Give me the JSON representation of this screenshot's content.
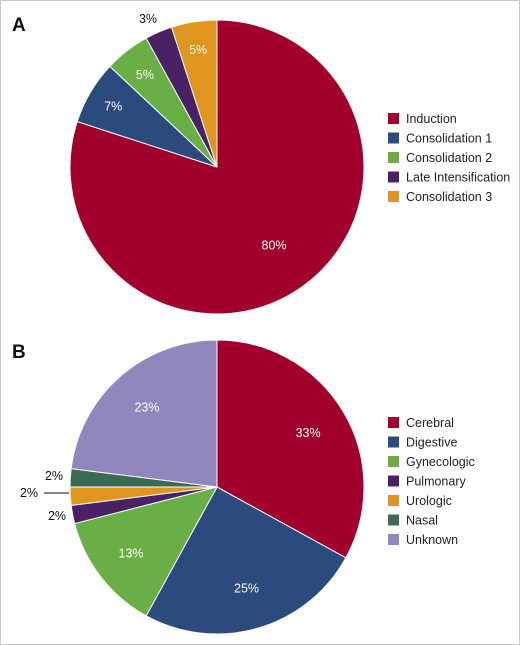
{
  "chart_data": [
    {
      "type": "pie",
      "panel_label": "A",
      "legend_position": "right",
      "slices": [
        {
          "name": "Induction",
          "value": 80,
          "label": "80%",
          "color": "#a0002b"
        },
        {
          "name": "Consolidation 1",
          "value": 7,
          "label": "7%",
          "color": "#2b4b7e"
        },
        {
          "name": "Consolidation 2",
          "value": 5,
          "label": "5%",
          "color": "#6aaf45"
        },
        {
          "name": "Late Intensification",
          "value": 3,
          "label": "3%",
          "color": "#4a2164"
        },
        {
          "name": "Consolidation 3",
          "value": 5,
          "label": "5%",
          "color": "#e0961e"
        }
      ]
    },
    {
      "type": "pie",
      "panel_label": "B",
      "legend_position": "right",
      "slices": [
        {
          "name": "Cerebral",
          "value": 33,
          "label": "33%",
          "color": "#a0002b"
        },
        {
          "name": "Digestive",
          "value": 25,
          "label": "25%",
          "color": "#2b4b7e"
        },
        {
          "name": "Gynecologic",
          "value": 13,
          "label": "13%",
          "color": "#6aaf45"
        },
        {
          "name": "Pulmonary",
          "value": 2,
          "label": "2%",
          "color": "#4a2164"
        },
        {
          "name": "Urologic",
          "value": 2,
          "label": "2%",
          "color": "#e0961e"
        },
        {
          "name": "Nasal",
          "value": 2,
          "label": "2%",
          "color": "#3b6b55"
        },
        {
          "name": "Unknown",
          "value": 23,
          "label": "23%",
          "color": "#8f87bd"
        }
      ]
    }
  ]
}
